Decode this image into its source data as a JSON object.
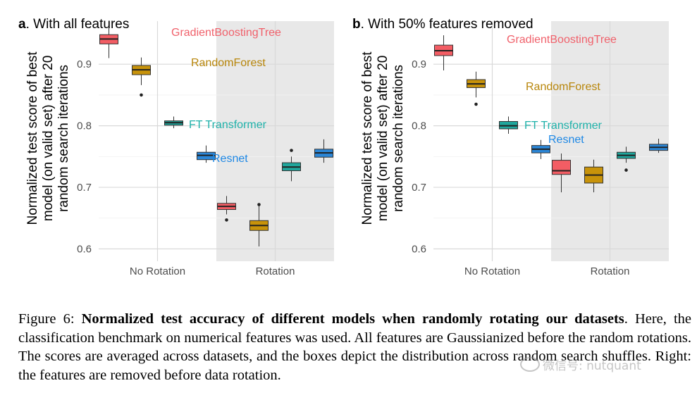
{
  "chart_data": [
    {
      "type": "box",
      "panel_letter": "a",
      "title": "With all features",
      "ylabel_lines": [
        "Normalized test score of best",
        "model (on valid set) after 20",
        "random search iterations"
      ],
      "ylim": [
        0.58,
        0.97
      ],
      "yticks": [
        0.6,
        0.7,
        0.8,
        0.9
      ],
      "categories": [
        "No Rotation",
        "Rotation"
      ],
      "shaded_category": "Rotation",
      "labels": [
        {
          "text": "GradientBoostingTree",
          "color": "#f0616b"
        },
        {
          "text": "RandomForest",
          "color": "#b8860b"
        },
        {
          "text": "FT Transformer",
          "color": "#20b2aa"
        },
        {
          "text": "Resnet",
          "color": "#1e88e5"
        }
      ],
      "series": [
        {
          "name": "GradientBoostingTree",
          "color": "#f35d64",
          "boxes": [
            {
              "category": "No Rotation",
              "whisker_low": 0.91,
              "q1": 0.933,
              "median": 0.941,
              "q3": 0.948,
              "whisker_high": 0.961,
              "outliers": []
            },
            {
              "category": "Rotation",
              "whisker_low": 0.656,
              "q1": 0.664,
              "median": 0.669,
              "q3": 0.674,
              "whisker_high": 0.686,
              "outliers": [
                0.647
              ]
            }
          ]
        },
        {
          "name": "RandomForest",
          "color": "#c8930a",
          "boxes": [
            {
              "category": "No Rotation",
              "whisker_low": 0.866,
              "q1": 0.883,
              "median": 0.891,
              "q3": 0.898,
              "whisker_high": 0.911,
              "outliers": [
                0.85
              ]
            },
            {
              "category": "Rotation",
              "whisker_low": 0.604,
              "q1": 0.63,
              "median": 0.638,
              "q3": 0.646,
              "whisker_high": 0.672,
              "outliers": [
                0.672
              ]
            }
          ]
        },
        {
          "name": "FT Transformer",
          "color": "#1fa69c",
          "boxes": [
            {
              "category": "No Rotation",
              "whisker_low": 0.796,
              "q1": 0.801,
              "median": 0.805,
              "q3": 0.808,
              "whisker_high": 0.815,
              "outliers": []
            },
            {
              "category": "Rotation",
              "whisker_low": 0.71,
              "q1": 0.727,
              "median": 0.733,
              "q3": 0.74,
              "whisker_high": 0.75,
              "outliers": [
                0.76
              ]
            }
          ]
        },
        {
          "name": "Resnet",
          "color": "#2b87d8",
          "boxes": [
            {
              "category": "No Rotation",
              "whisker_low": 0.74,
              "q1": 0.745,
              "median": 0.752,
              "q3": 0.757,
              "whisker_high": 0.768,
              "outliers": []
            },
            {
              "category": "Rotation",
              "whisker_low": 0.74,
              "q1": 0.749,
              "median": 0.756,
              "q3": 0.762,
              "whisker_high": 0.778,
              "outliers": []
            }
          ]
        }
      ]
    },
    {
      "type": "box",
      "panel_letter": "b",
      "title": "With 50% features removed",
      "ylabel_lines": [
        "Normalized test score of best",
        "model (on valid set) after 20",
        "random search iterations"
      ],
      "ylim": [
        0.58,
        0.97
      ],
      "yticks": [
        0.6,
        0.7,
        0.8,
        0.9
      ],
      "categories": [
        "No Rotation",
        "Rotation"
      ],
      "shaded_category": "Rotation",
      "labels": [
        {
          "text": "GradientBoostingTree",
          "color": "#f0616b"
        },
        {
          "text": "RandomForest",
          "color": "#b8860b"
        },
        {
          "text": "FT Transformer",
          "color": "#20b2aa"
        },
        {
          "text": "Resnet",
          "color": "#1e88e5"
        }
      ],
      "series": [
        {
          "name": "GradientBoostingTree",
          "color": "#f35d64",
          "boxes": [
            {
              "category": "No Rotation",
              "whisker_low": 0.89,
              "q1": 0.914,
              "median": 0.922,
              "q3": 0.931,
              "whisker_high": 0.947,
              "outliers": []
            },
            {
              "category": "Rotation",
              "whisker_low": 0.692,
              "q1": 0.721,
              "median": 0.727,
              "q3": 0.744,
              "whisker_high": 0.755,
              "outliers": []
            }
          ]
        },
        {
          "name": "RandomForest",
          "color": "#c8930a",
          "boxes": [
            {
              "category": "No Rotation",
              "whisker_low": 0.846,
              "q1": 0.862,
              "median": 0.868,
              "q3": 0.875,
              "whisker_high": 0.888,
              "outliers": [
                0.835
              ]
            },
            {
              "category": "Rotation",
              "whisker_low": 0.692,
              "q1": 0.707,
              "median": 0.72,
              "q3": 0.733,
              "whisker_high": 0.745,
              "outliers": []
            }
          ]
        },
        {
          "name": "FT Transformer",
          "color": "#1fa69c",
          "boxes": [
            {
              "category": "No Rotation",
              "whisker_low": 0.787,
              "q1": 0.795,
              "median": 0.8,
              "q3": 0.807,
              "whisker_high": 0.815,
              "outliers": []
            },
            {
              "category": "Rotation",
              "whisker_low": 0.74,
              "q1": 0.747,
              "median": 0.752,
              "q3": 0.757,
              "whisker_high": 0.766,
              "outliers": [
                0.728
              ]
            }
          ]
        },
        {
          "name": "Resnet",
          "color": "#2b87d8",
          "boxes": [
            {
              "category": "No Rotation",
              "whisker_low": 0.746,
              "q1": 0.756,
              "median": 0.762,
              "q3": 0.768,
              "whisker_high": 0.777,
              "outliers": []
            },
            {
              "category": "Rotation",
              "whisker_low": 0.756,
              "q1": 0.76,
              "median": 0.765,
              "q3": 0.77,
              "whisker_high": 0.779,
              "outliers": []
            }
          ]
        }
      ]
    }
  ],
  "caption": {
    "prefix": "Figure 6: ",
    "bold": "Normalized test accuracy of different models when randomly rotating our datasets",
    "rest": ". Here, the classification benchmark on numerical features was used. All features are Gaussianized before the random rotations. The scores are averaged across datasets, and the boxes depict the distribution across random search shuffles. Right: the features are removed before data rotation."
  },
  "watermark": {
    "text": "微信号: nutquant"
  }
}
